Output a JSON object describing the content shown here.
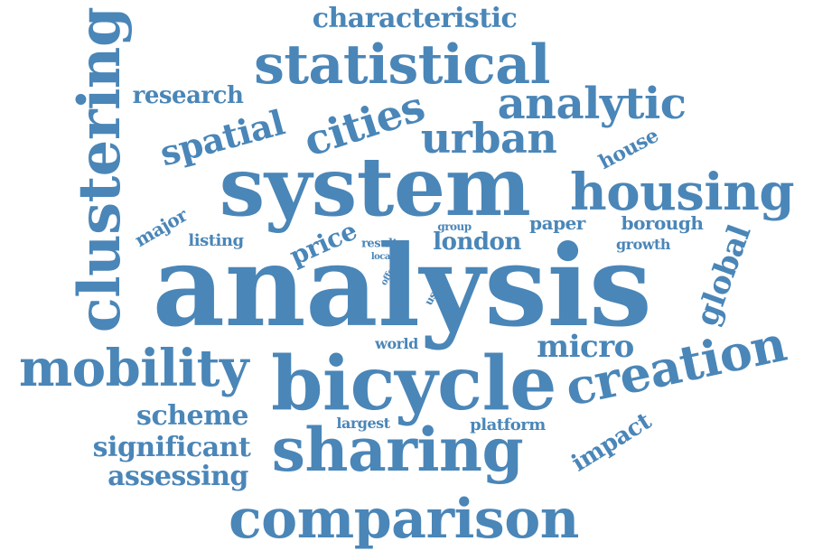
{
  "color": "#4a86b8",
  "words": {
    "analysis": "analysis",
    "system": "system",
    "bicycle": "bicycle",
    "sharing": "sharing",
    "comparison": "comparison",
    "clustering": "clustering",
    "statistical": "statistical",
    "housing": "housing",
    "mobility": "mobility",
    "creation": "creation",
    "analytic": "analytic",
    "urban": "urban",
    "cities": "cities",
    "spatial": "spatial",
    "characteristic": "characteristic",
    "research": "research",
    "micro": "micro",
    "scheme": "scheme",
    "significant": "significant",
    "assessing": "assessing",
    "global": "global",
    "impact": "impact",
    "house": "house",
    "london": "london",
    "price": "price",
    "major": "major",
    "listing": "listing",
    "paper": "paper",
    "borough": "borough",
    "growth": "growth",
    "group": "group",
    "result": "result",
    "local": "local",
    "offer": "offer",
    "user": "user",
    "world": "world",
    "largest": "largest",
    "platform": "platform"
  }
}
